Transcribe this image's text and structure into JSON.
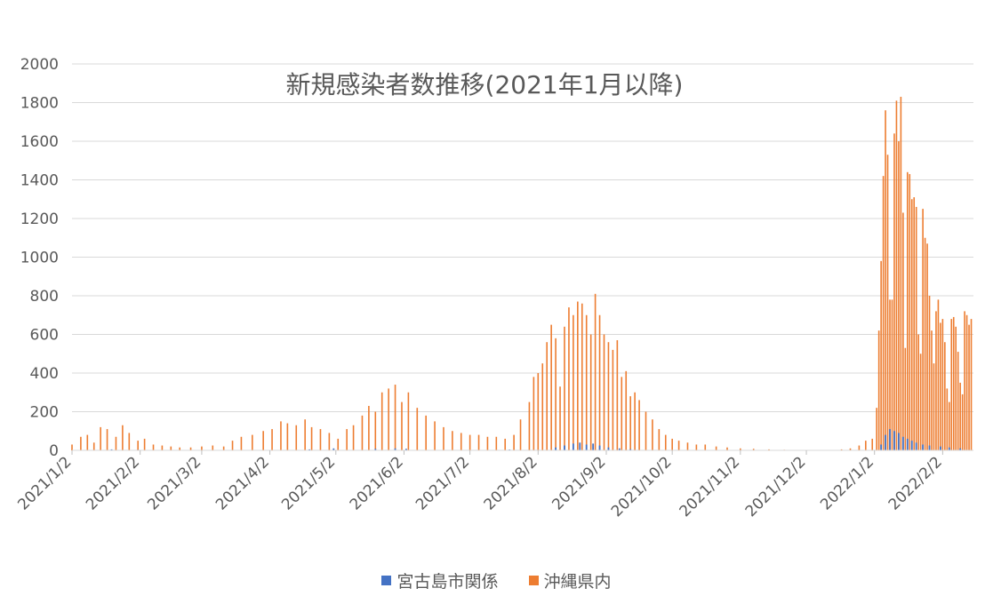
{
  "chart_data": {
    "type": "bar",
    "title": "新規感染者数推移(2021年1月以降)",
    "xlabel": "",
    "ylabel": "",
    "ylim": [
      0,
      2000
    ],
    "yticks": [
      0,
      200,
      400,
      600,
      800,
      1000,
      1200,
      1400,
      1600,
      1800,
      2000
    ],
    "xlim": [
      "2021-01-02",
      "2022-02-16"
    ],
    "xtick_labels": [
      "2021/1/2",
      "2021/2/2",
      "2021/3/2",
      "2021/4/2",
      "2021/5/2",
      "2021/6/2",
      "2021/7/2",
      "2021/8/2",
      "2021/9/2",
      "2021/10/2",
      "2021/11/2",
      "2021/12/2",
      "2022/1/2",
      "2022/2/2"
    ],
    "xtick_dates": [
      "2021-01-02",
      "2021-02-02",
      "2021-03-02",
      "2021-04-02",
      "2021-05-02",
      "2021-06-02",
      "2021-07-02",
      "2021-08-02",
      "2021-09-02",
      "2021-10-02",
      "2021-11-02",
      "2021-12-02",
      "2022-01-02",
      "2022-02-02"
    ],
    "grid": true,
    "legend_position": "bottom",
    "series": [
      {
        "name": "宮古島市関係",
        "color": "#4472c4",
        "points": [
          [
            "2021-01-20",
            5
          ],
          [
            "2021-02-01",
            3
          ],
          [
            "2021-04-20",
            5
          ],
          [
            "2021-05-01",
            10
          ],
          [
            "2021-05-20",
            8
          ],
          [
            "2021-05-29",
            10
          ],
          [
            "2021-06-03",
            8
          ],
          [
            "2021-07-20",
            4
          ],
          [
            "2021-08-10",
            15
          ],
          [
            "2021-08-14",
            25
          ],
          [
            "2021-08-18",
            35
          ],
          [
            "2021-08-21",
            40
          ],
          [
            "2021-08-24",
            30
          ],
          [
            "2021-08-27",
            35
          ],
          [
            "2021-08-30",
            25
          ],
          [
            "2021-09-03",
            15
          ],
          [
            "2021-09-08",
            10
          ],
          [
            "2021-09-13",
            6
          ],
          [
            "2022-01-05",
            30
          ],
          [
            "2022-01-07",
            80
          ],
          [
            "2022-01-09",
            110
          ],
          [
            "2022-01-11",
            100
          ],
          [
            "2022-01-13",
            90
          ],
          [
            "2022-01-15",
            70
          ],
          [
            "2022-01-17",
            60
          ],
          [
            "2022-01-19",
            50
          ],
          [
            "2022-01-21",
            40
          ],
          [
            "2022-01-24",
            30
          ],
          [
            "2022-01-27",
            25
          ],
          [
            "2022-02-01",
            20
          ],
          [
            "2022-02-05",
            15
          ],
          [
            "2022-02-10",
            10
          ]
        ]
      },
      {
        "name": "沖縄県内",
        "color": "#ed7d31",
        "points": [
          [
            "2021-01-02",
            30
          ],
          [
            "2021-01-06",
            70
          ],
          [
            "2021-01-09",
            80
          ],
          [
            "2021-01-12",
            40
          ],
          [
            "2021-01-15",
            120
          ],
          [
            "2021-01-18",
            110
          ],
          [
            "2021-01-22",
            70
          ],
          [
            "2021-01-25",
            130
          ],
          [
            "2021-01-28",
            90
          ],
          [
            "2021-02-01",
            50
          ],
          [
            "2021-02-04",
            60
          ],
          [
            "2021-02-08",
            30
          ],
          [
            "2021-02-12",
            25
          ],
          [
            "2021-02-16",
            20
          ],
          [
            "2021-02-20",
            15
          ],
          [
            "2021-02-25",
            15
          ],
          [
            "2021-03-02",
            20
          ],
          [
            "2021-03-07",
            25
          ],
          [
            "2021-03-12",
            20
          ],
          [
            "2021-03-16",
            50
          ],
          [
            "2021-03-20",
            70
          ],
          [
            "2021-03-25",
            80
          ],
          [
            "2021-03-30",
            100
          ],
          [
            "2021-04-03",
            110
          ],
          [
            "2021-04-07",
            150
          ],
          [
            "2021-04-10",
            140
          ],
          [
            "2021-04-14",
            130
          ],
          [
            "2021-04-18",
            160
          ],
          [
            "2021-04-21",
            120
          ],
          [
            "2021-04-25",
            110
          ],
          [
            "2021-04-29",
            90
          ],
          [
            "2021-05-03",
            60
          ],
          [
            "2021-05-07",
            110
          ],
          [
            "2021-05-10",
            130
          ],
          [
            "2021-05-14",
            180
          ],
          [
            "2021-05-17",
            230
          ],
          [
            "2021-05-20",
            200
          ],
          [
            "2021-05-23",
            300
          ],
          [
            "2021-05-26",
            320
          ],
          [
            "2021-05-29",
            340
          ],
          [
            "2021-06-01",
            250
          ],
          [
            "2021-06-04",
            300
          ],
          [
            "2021-06-08",
            220
          ],
          [
            "2021-06-12",
            180
          ],
          [
            "2021-06-16",
            150
          ],
          [
            "2021-06-20",
            120
          ],
          [
            "2021-06-24",
            100
          ],
          [
            "2021-06-28",
            90
          ],
          [
            "2021-07-02",
            80
          ],
          [
            "2021-07-06",
            80
          ],
          [
            "2021-07-10",
            70
          ],
          [
            "2021-07-14",
            70
          ],
          [
            "2021-07-18",
            60
          ],
          [
            "2021-07-22",
            80
          ],
          [
            "2021-07-25",
            160
          ],
          [
            "2021-07-29",
            250
          ],
          [
            "2021-07-31",
            380
          ],
          [
            "2021-08-02",
            400
          ],
          [
            "2021-08-04",
            450
          ],
          [
            "2021-08-06",
            560
          ],
          [
            "2021-08-08",
            650
          ],
          [
            "2021-08-10",
            580
          ],
          [
            "2021-08-12",
            330
          ],
          [
            "2021-08-14",
            640
          ],
          [
            "2021-08-16",
            740
          ],
          [
            "2021-08-18",
            700
          ],
          [
            "2021-08-20",
            770
          ],
          [
            "2021-08-22",
            760
          ],
          [
            "2021-08-24",
            700
          ],
          [
            "2021-08-26",
            600
          ],
          [
            "2021-08-28",
            810
          ],
          [
            "2021-08-30",
            700
          ],
          [
            "2021-09-01",
            600
          ],
          [
            "2021-09-03",
            560
          ],
          [
            "2021-09-05",
            520
          ],
          [
            "2021-09-07",
            570
          ],
          [
            "2021-09-09",
            380
          ],
          [
            "2021-09-11",
            410
          ],
          [
            "2021-09-13",
            280
          ],
          [
            "2021-09-15",
            300
          ],
          [
            "2021-09-17",
            260
          ],
          [
            "2021-09-20",
            200
          ],
          [
            "2021-09-23",
            160
          ],
          [
            "2021-09-26",
            110
          ],
          [
            "2021-09-29",
            80
          ],
          [
            "2021-10-02",
            60
          ],
          [
            "2021-10-05",
            50
          ],
          [
            "2021-10-09",
            40
          ],
          [
            "2021-10-13",
            30
          ],
          [
            "2021-10-17",
            30
          ],
          [
            "2021-10-22",
            20
          ],
          [
            "2021-10-27",
            15
          ],
          [
            "2021-11-02",
            10
          ],
          [
            "2021-11-08",
            8
          ],
          [
            "2021-11-15",
            5
          ],
          [
            "2021-11-22",
            3
          ],
          [
            "2021-12-01",
            2
          ],
          [
            "2021-12-10",
            2
          ],
          [
            "2021-12-18",
            5
          ],
          [
            "2021-12-22",
            10
          ],
          [
            "2021-12-26",
            25
          ],
          [
            "2021-12-29",
            50
          ],
          [
            "2022-01-01",
            60
          ],
          [
            "2022-01-03",
            220
          ],
          [
            "2022-01-04",
            620
          ],
          [
            "2022-01-05",
            980
          ],
          [
            "2022-01-06",
            1420
          ],
          [
            "2022-01-07",
            1760
          ],
          [
            "2022-01-08",
            1530
          ],
          [
            "2022-01-09",
            780
          ],
          [
            "2022-01-10",
            780
          ],
          [
            "2022-01-11",
            1640
          ],
          [
            "2022-01-12",
            1810
          ],
          [
            "2022-01-13",
            1600
          ],
          [
            "2022-01-14",
            1830
          ],
          [
            "2022-01-15",
            1230
          ],
          [
            "2022-01-16",
            530
          ],
          [
            "2022-01-17",
            1440
          ],
          [
            "2022-01-18",
            1430
          ],
          [
            "2022-01-19",
            1300
          ],
          [
            "2022-01-20",
            1310
          ],
          [
            "2022-01-21",
            1260
          ],
          [
            "2022-01-22",
            600
          ],
          [
            "2022-01-23",
            500
          ],
          [
            "2022-01-24",
            1250
          ],
          [
            "2022-01-25",
            1100
          ],
          [
            "2022-01-26",
            1070
          ],
          [
            "2022-01-27",
            800
          ],
          [
            "2022-01-28",
            620
          ],
          [
            "2022-01-29",
            450
          ],
          [
            "2022-01-30",
            720
          ],
          [
            "2022-01-31",
            780
          ],
          [
            "2022-02-01",
            660
          ],
          [
            "2022-02-02",
            680
          ],
          [
            "2022-02-03",
            560
          ],
          [
            "2022-02-04",
            320
          ],
          [
            "2022-02-05",
            250
          ],
          [
            "2022-02-06",
            680
          ],
          [
            "2022-02-07",
            690
          ],
          [
            "2022-02-08",
            640
          ],
          [
            "2022-02-09",
            510
          ],
          [
            "2022-02-10",
            350
          ],
          [
            "2022-02-11",
            290
          ],
          [
            "2022-02-12",
            720
          ],
          [
            "2022-02-13",
            700
          ],
          [
            "2022-02-14",
            650
          ],
          [
            "2022-02-15",
            680
          ]
        ]
      }
    ]
  }
}
